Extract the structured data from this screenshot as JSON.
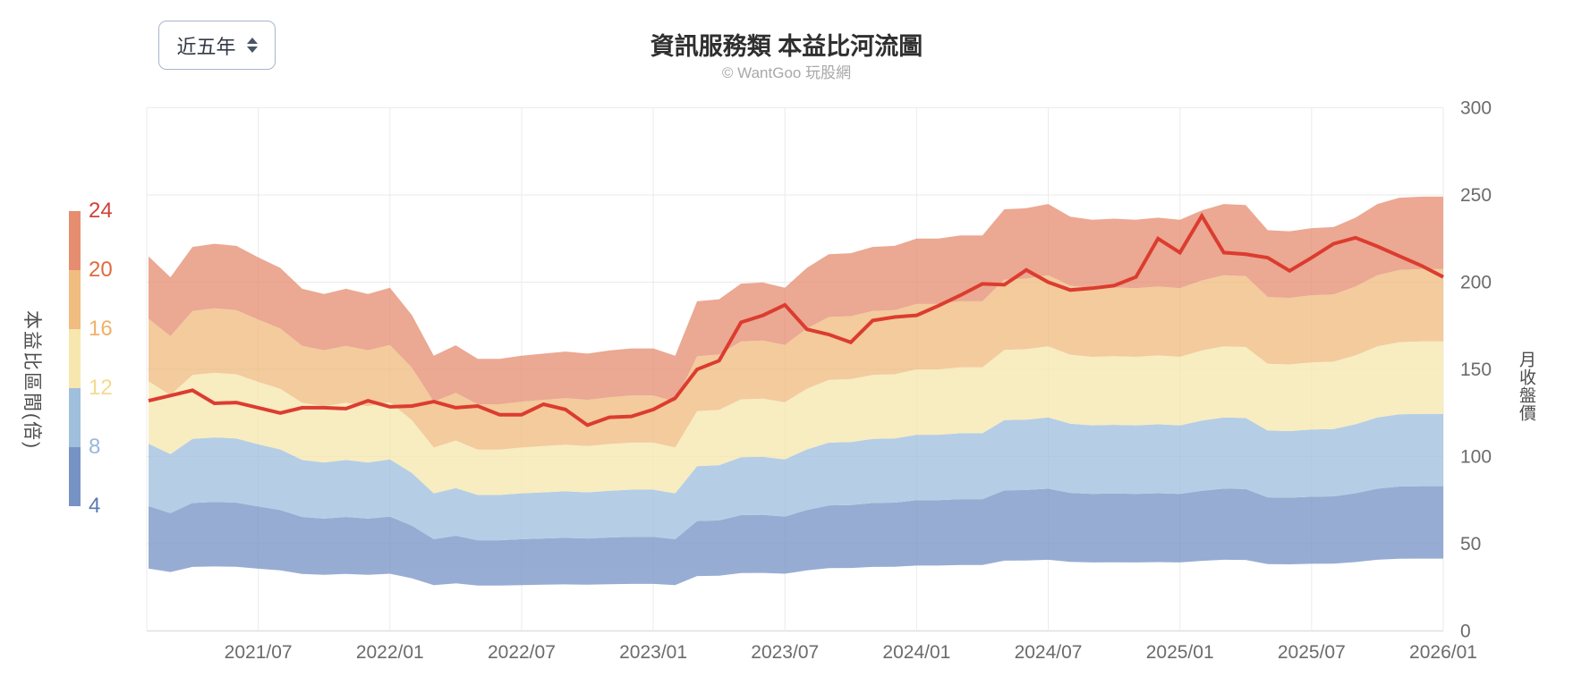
{
  "header": {
    "range_select": {
      "value": "近五年"
    },
    "title": "資訊服務類 本益比河流圖",
    "subtitle": "© WantGoo 玩股網"
  },
  "chart_data": {
    "type": "area",
    "subtype": "pe-river-band-chart",
    "title": "資訊服務類 本益比河流圖",
    "watermark": "© WantGoo 玩股網",
    "months": [
      "2021/02",
      "2021/03",
      "2021/04",
      "2021/05",
      "2021/06",
      "2021/07",
      "2021/08",
      "2021/09",
      "2021/10",
      "2021/11",
      "2021/12",
      "2022/01",
      "2022/02",
      "2022/03",
      "2022/04",
      "2022/05",
      "2022/06",
      "2022/07",
      "2022/08",
      "2022/09",
      "2022/10",
      "2022/11",
      "2022/12",
      "2023/01",
      "2023/02",
      "2023/03",
      "2023/04",
      "2023/05",
      "2023/06",
      "2023/07",
      "2023/08",
      "2023/09",
      "2023/10",
      "2023/11",
      "2023/12",
      "2024/01",
      "2024/02",
      "2024/03",
      "2024/04",
      "2024/05",
      "2024/06",
      "2024/07",
      "2024/08",
      "2024/09",
      "2024/10",
      "2024/11",
      "2024/12",
      "2025/01",
      "2025/02",
      "2025/03",
      "2025/04",
      "2025/05",
      "2025/06",
      "2025/07",
      "2025/08",
      "2025/09",
      "2025/10",
      "2025/11",
      "2025/12",
      "2026/01"
    ],
    "x_tick_labels": [
      "2021/07",
      "2022/01",
      "2022/07",
      "2023/01",
      "2023/07",
      "2024/01",
      "2024/07",
      "2025/01",
      "2025/07",
      "2026/01"
    ],
    "right_axis": {
      "label": "月收盤價",
      "ticks": [
        0,
        50,
        100,
        150,
        200,
        250,
        300
      ],
      "range": [
        0,
        300
      ]
    },
    "left_axis": {
      "label": "本益比區間(倍)",
      "pe_multiples": [
        4,
        8,
        12,
        16,
        20,
        24
      ]
    },
    "series": [
      {
        "name": "月收盤價",
        "type": "line",
        "color": "#dc3c30",
        "values": [
          132,
          135,
          138,
          130.5,
          131,
          128,
          125,
          128,
          128,
          127.5,
          132,
          128.5,
          129,
          131.5,
          128,
          129,
          124,
          124,
          130,
          127,
          118,
          122.5,
          123,
          127,
          133.5,
          150,
          155,
          177,
          181,
          187,
          173,
          170,
          165.5,
          178,
          180,
          181,
          186.5,
          192.5,
          199,
          198.5,
          207,
          200,
          195.5,
          196.5,
          198,
          203,
          225,
          217,
          238,
          217,
          216,
          214,
          206.5,
          214,
          222,
          225.5,
          220.5,
          215,
          209.5,
          203
        ]
      },
      {
        "name": "本益比4倍價位",
        "type": "band-base",
        "comment": "band boundaries = values × multiple/4",
        "values": [
          35.8,
          33.8,
          36.7,
          37,
          36.8,
          35.7,
          34.7,
          32.7,
          32.2,
          32.7,
          32.2,
          32.8,
          30.2,
          26.3,
          27.3,
          26,
          26,
          26.3,
          26.5,
          26.7,
          26.5,
          26.8,
          27,
          27,
          26.3,
          31.5,
          31.7,
          33.2,
          33.3,
          32.8,
          34.7,
          36,
          36.1,
          36.7,
          36.8,
          37.5,
          37.5,
          37.8,
          37.8,
          40.3,
          40.4,
          40.8,
          39.6,
          39.3,
          39.4,
          39.3,
          39.5,
          39.3,
          40.2,
          40.8,
          40.7,
          38.3,
          38.2,
          38.5,
          38.6,
          39.5,
          40.8,
          41.4,
          41.5,
          41.5
        ]
      }
    ],
    "band_fill_colors_bottom_to_top": [
      "#7793c5",
      "#9fbfdd",
      "#f7e7ae",
      "#f0bc7f",
      "#e68d70"
    ],
    "band_fill_opacity": 0.76,
    "pe_legend": {
      "entries": [
        {
          "label": "24",
          "text_color": "#cf4237",
          "swatch_color": "#e68d70"
        },
        {
          "label": "20",
          "text_color": "#e16a3e",
          "swatch_color": "#f0bc7f"
        },
        {
          "label": "16",
          "text_color": "#efb168",
          "swatch_color": "#f7e7ae"
        },
        {
          "label": "12",
          "text_color": "#f4da90",
          "swatch_color": "#9fbfdd"
        },
        {
          "label": "8",
          "text_color": "#97b8dc",
          "swatch_color": "#7793c5"
        },
        {
          "label": "4",
          "text_color": "#5b79b7",
          "swatch_color": null
        }
      ]
    },
    "grid_color": "#ebebeb",
    "axis_line_color": "#e0e0e0",
    "tick_text_color": "#6b6b6b",
    "legend_position": "left",
    "grid_on": true
  }
}
